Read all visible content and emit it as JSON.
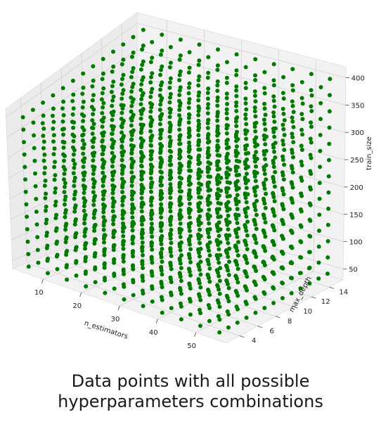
{
  "chart_data": {
    "type": "scatter",
    "subtype": "3d",
    "title": "",
    "caption": {
      "line1": "Data points with all possible",
      "line2": "hyperparameters combinations"
    },
    "point_color": "#007a00",
    "grid": true,
    "pane_color": "#f2f2f2",
    "axes": {
      "x": {
        "label": "n_estimators",
        "ticks": [
          10,
          20,
          30,
          40,
          50
        ],
        "tick_labels": [
          "10",
          "20",
          "30",
          "40",
          "50"
        ],
        "lim": [
          2,
          58
        ]
      },
      "y": {
        "label": "max_depth",
        "ticks": [
          4,
          6,
          8,
          10,
          12,
          14
        ],
        "tick_labels": [
          "4",
          "6",
          "8",
          "10",
          "12",
          "14"
        ],
        "lim": [
          2.5,
          15.5
        ]
      },
      "z": {
        "label": "train_size",
        "ticks": [
          50,
          100,
          150,
          200,
          250,
          300,
          350,
          400
        ],
        "tick_labels": [
          "50",
          "100",
          "150",
          "200",
          "250",
          "300",
          "350",
          "400"
        ],
        "lim": [
          30,
          420
        ]
      }
    },
    "grid_values": {
      "n_estimators": [
        5,
        10,
        15,
        20,
        25,
        30,
        35,
        40,
        45,
        50,
        55
      ],
      "max_depth": [
        3,
        4,
        5,
        6,
        7,
        8,
        9,
        10,
        11,
        12,
        13,
        14,
        15
      ],
      "train_size": [
        40,
        70,
        100,
        130,
        160,
        190,
        220,
        250,
        280,
        310,
        340,
        370,
        400
      ]
    }
  }
}
